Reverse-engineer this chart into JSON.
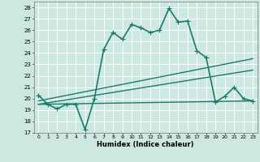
{
  "xlabel": "Humidex (Indice chaleur)",
  "xlim": [
    -0.5,
    23.5
  ],
  "ylim": [
    17,
    28.5
  ],
  "yticks": [
    17,
    18,
    19,
    20,
    21,
    22,
    23,
    24,
    25,
    26,
    27,
    28
  ],
  "xticks": [
    0,
    1,
    2,
    3,
    4,
    5,
    6,
    7,
    8,
    9,
    10,
    11,
    12,
    13,
    14,
    15,
    16,
    17,
    18,
    19,
    20,
    21,
    22,
    23
  ],
  "bg_color": "#cce8e0",
  "grid_color": "#ffffff",
  "line_color": "#1a7a6e",
  "lines": [
    {
      "x": [
        0,
        1,
        2,
        3,
        4,
        5,
        6,
        7,
        8,
        9,
        10,
        11,
        12,
        13,
        14,
        15,
        16,
        17,
        18,
        19,
        20,
        21,
        22,
        23
      ],
      "y": [
        20.3,
        19.5,
        19.1,
        19.5,
        19.5,
        17.3,
        20.0,
        24.3,
        25.8,
        25.2,
        26.5,
        26.2,
        25.8,
        26.0,
        27.9,
        26.7,
        26.8,
        24.2,
        23.6,
        19.7,
        20.2,
        21.0,
        20.0,
        19.8
      ],
      "marker": "+",
      "linewidth": 1.2,
      "markersize": 4
    },
    {
      "x": [
        0,
        23
      ],
      "y": [
        19.8,
        23.5
      ],
      "marker": null,
      "linewidth": 1.0
    },
    {
      "x": [
        0,
        23
      ],
      "y": [
        19.5,
        22.5
      ],
      "marker": null,
      "linewidth": 1.0
    },
    {
      "x": [
        0,
        23
      ],
      "y": [
        19.5,
        19.8
      ],
      "marker": null,
      "linewidth": 1.0
    }
  ]
}
